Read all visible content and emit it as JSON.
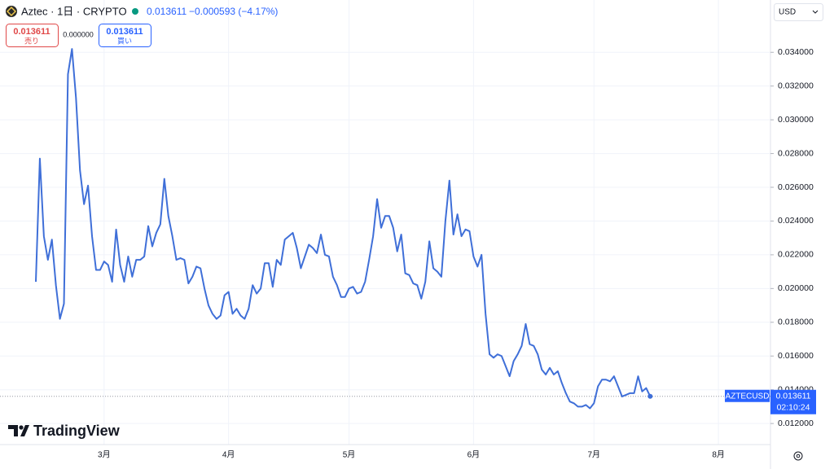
{
  "chart_data": {
    "type": "line",
    "title": "Aztec · 1日 · CRYPTO",
    "last_price": 0.013611,
    "change": "−0.000593 (−4.17%)",
    "sell_price": 0.013611,
    "sell_label": "売り",
    "spread": "0.000000",
    "buy_price": 0.013611,
    "buy_label": "買い",
    "currency": "USD",
    "symbol": "AZTECUSD",
    "axis_price": 0.013611,
    "countdown": "02:10:24",
    "brand": "TradingView",
    "color": "#3f6fd8",
    "grid": true,
    "ylim": [
      0.0108,
      0.0371
    ],
    "yticks": [
      {
        "value": 0.012,
        "label": "0.012000"
      },
      {
        "value": 0.014,
        "label": "0.014000"
      },
      {
        "value": 0.016,
        "label": "0.016000"
      },
      {
        "value": 0.018,
        "label": "0.018000"
      },
      {
        "value": 0.02,
        "label": "0.020000"
      },
      {
        "value": 0.022,
        "label": "0.022000"
      },
      {
        "value": 0.024,
        "label": "0.024000"
      },
      {
        "value": 0.026,
        "label": "0.026000"
      },
      {
        "value": 0.028,
        "label": "0.028000"
      },
      {
        "value": 0.03,
        "label": "0.030000"
      },
      {
        "value": 0.032,
        "label": "0.032000"
      },
      {
        "value": 0.034,
        "label": "0.034000"
      }
    ],
    "categories": [
      null,
      null,
      null,
      null,
      null,
      null,
      null,
      null,
      null,
      null,
      null,
      null,
      null,
      null,
      null,
      null,
      null,
      "3月",
      null,
      null,
      null,
      null,
      null,
      null,
      null,
      null,
      null,
      null,
      null,
      null,
      null,
      null,
      null,
      null,
      null,
      null,
      null,
      null,
      null,
      null,
      null,
      null,
      null,
      null,
      null,
      null,
      null,
      null,
      "4月",
      null,
      null,
      null,
      null,
      null,
      null,
      null,
      null,
      null,
      null,
      null,
      null,
      null,
      null,
      null,
      null,
      null,
      null,
      null,
      null,
      null,
      null,
      null,
      null,
      null,
      null,
      null,
      null,
      null,
      "5月",
      null,
      null,
      null,
      null,
      null,
      null,
      null,
      null,
      null,
      null,
      null,
      null,
      null,
      null,
      null,
      null,
      null,
      null,
      null,
      null,
      null,
      null,
      null,
      null,
      null,
      null,
      null,
      null,
      null,
      null,
      "6月",
      null,
      null,
      null,
      null,
      null,
      null,
      null,
      null,
      null,
      null,
      null,
      null,
      null,
      null,
      null,
      null,
      null,
      null,
      null,
      null,
      null,
      null,
      null,
      null,
      null,
      null,
      null,
      null,
      null,
      "7月",
      null,
      null,
      null,
      null,
      null,
      null,
      null,
      null,
      null,
      null,
      null,
      null,
      null,
      null,
      null,
      null,
      null,
      null,
      null,
      null,
      null,
      null,
      null,
      null,
      null,
      null,
      null,
      null,
      null,
      null,
      "8月"
    ],
    "values": [
      0.0204,
      0.0277,
      0.0231,
      0.0217,
      0.0229,
      0.0202,
      0.0182,
      0.0191,
      0.0327,
      0.0342,
      0.0313,
      0.027,
      0.025,
      0.0261,
      0.0231,
      0.0211,
      0.0211,
      0.0216,
      0.0214,
      0.0204,
      0.0235,
      0.0214,
      0.0204,
      0.0219,
      0.0207,
      0.0217,
      0.0217,
      0.0219,
      0.0237,
      0.0225,
      0.0233,
      0.0238,
      0.0265,
      0.0243,
      0.0231,
      0.0217,
      0.0218,
      0.0217,
      0.0203,
      0.0207,
      0.0213,
      0.0212,
      0.02,
      0.019,
      0.0185,
      0.0182,
      0.0184,
      0.0196,
      0.0198,
      0.0185,
      0.0188,
      0.0184,
      0.0182,
      0.0188,
      0.0202,
      0.0197,
      0.02,
      0.0215,
      0.0215,
      0.0201,
      0.0217,
      0.0214,
      0.0229,
      0.0231,
      0.0233,
      0.0224,
      0.0212,
      0.0219,
      0.0226,
      0.0224,
      0.0221,
      0.0232,
      0.022,
      0.0219,
      0.0207,
      0.0202,
      0.0195,
      0.0195,
      0.02,
      0.0201,
      0.0197,
      0.0198,
      0.0204,
      0.0217,
      0.0231,
      0.0253,
      0.0236,
      0.0243,
      0.0243,
      0.0236,
      0.0222,
      0.0232,
      0.0209,
      0.0208,
      0.0203,
      0.0202,
      0.0194,
      0.0204,
      0.0228,
      0.0212,
      0.021,
      0.0207,
      0.024,
      0.0264,
      0.0232,
      0.0244,
      0.0231,
      0.0235,
      0.0234,
      0.0219,
      0.0213,
      0.022,
      0.0185,
      0.0161,
      0.0159,
      0.0161,
      0.016,
      0.0154,
      0.0148,
      0.0157,
      0.0161,
      0.0166,
      0.0179,
      0.0167,
      0.0166,
      0.0161,
      0.0152,
      0.0149,
      0.0153,
      0.0149,
      0.0151,
      0.0144,
      0.0138,
      0.0133,
      0.0132,
      0.013,
      0.013,
      0.0131,
      0.0129,
      0.0132,
      0.0142,
      0.0146,
      0.0146,
      0.0145,
      0.0148,
      0.0142,
      0.0136,
      0.0137,
      0.0138,
      0.0138,
      0.0148,
      0.0139,
      0.0141,
      0.013611,
      null,
      null,
      null,
      null,
      null,
      null,
      null,
      null,
      null,
      null,
      null,
      null,
      null,
      null,
      null,
      null,
      null
    ]
  }
}
